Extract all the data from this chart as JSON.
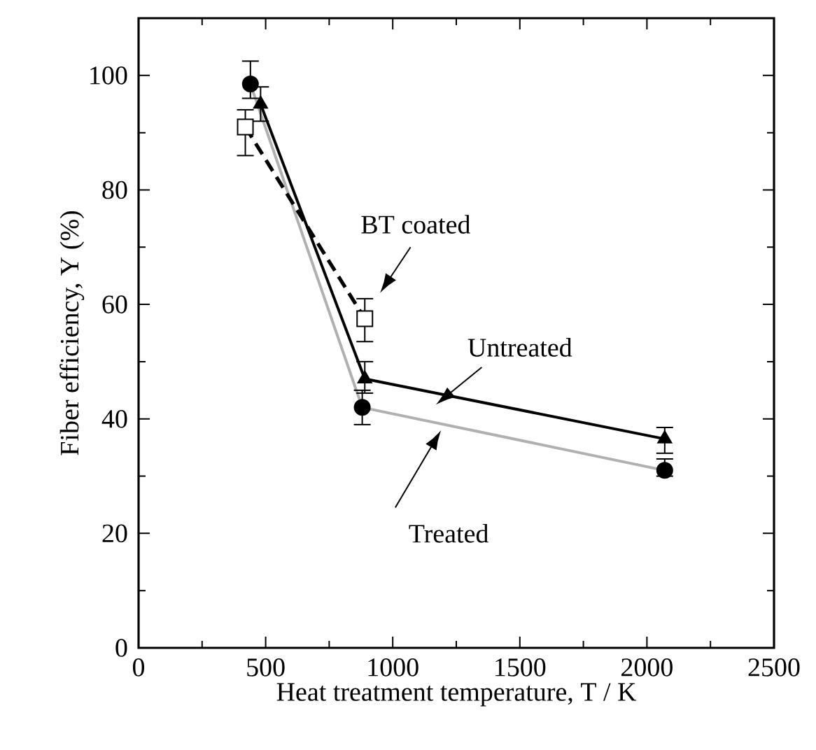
{
  "chart_data": {
    "type": "line",
    "xlabel": "Heat treatment temperature, T / K",
    "ylabel": "Fiber efficiency, Y (%)",
    "xlim": [
      0,
      2500
    ],
    "xticks": [
      0,
      500,
      1000,
      1500,
      2000,
      2500
    ],
    "ylim": [
      0,
      110
    ],
    "yticks": [
      0,
      20,
      40,
      60,
      80,
      100
    ],
    "grid": false,
    "series": [
      {
        "name": "Treated",
        "color": "#b0b0b0",
        "marker": "circle",
        "line_style": "solid",
        "x": [
          440,
          880,
          2070
        ],
        "values": [
          98.5,
          42,
          31
        ],
        "errors": [
          [
            96,
            102.5
          ],
          [
            39,
            45
          ],
          [
            30,
            33
          ]
        ]
      },
      {
        "name": "Untreated",
        "color": "#000000",
        "marker": "triangle",
        "line_style": "solid",
        "x": [
          480,
          890,
          2070
        ],
        "values": [
          95,
          47,
          36.5
        ],
        "errors": [
          [
            92,
            98
          ],
          [
            44.5,
            50
          ],
          [
            34,
            38.5
          ]
        ]
      },
      {
        "name": "BT coated",
        "color": "#000000",
        "marker": "square",
        "line_style": "dashed",
        "x": [
          420,
          890
        ],
        "values": [
          91,
          57.5
        ],
        "errors": [
          [
            86,
            94
          ],
          [
            53.5,
            61
          ]
        ]
      }
    ]
  }
}
